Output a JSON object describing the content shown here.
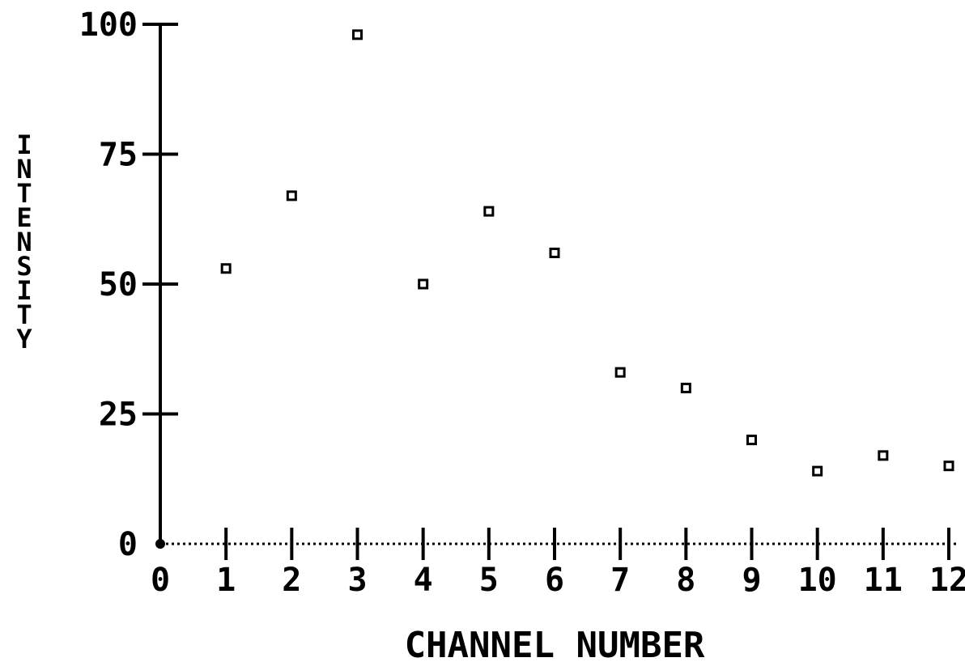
{
  "chart_data": {
    "type": "scatter",
    "xlabel": "CHANNEL NUMBER",
    "ylabel": "INTENSITY",
    "xlim": [
      0,
      12
    ],
    "ylim": [
      0,
      100
    ],
    "x_ticks": [
      "0",
      "1",
      "2",
      "3",
      "4",
      "5",
      "6",
      "7",
      "8",
      "9",
      "10",
      "11",
      "12"
    ],
    "y_ticks": [
      "0",
      "25",
      "50",
      "75",
      "100"
    ],
    "grid": false,
    "marker": "open-square",
    "colors": {
      "ink": "#000000",
      "background": "#ffffff"
    },
    "series": [
      {
        "x": [
          0,
          1,
          2,
          3,
          4,
          5,
          6,
          7,
          8,
          9,
          10,
          11,
          12
        ],
        "y": [
          0,
          53,
          67,
          98,
          50,
          64,
          56,
          33,
          30,
          20,
          14,
          17,
          15
        ]
      }
    ]
  }
}
